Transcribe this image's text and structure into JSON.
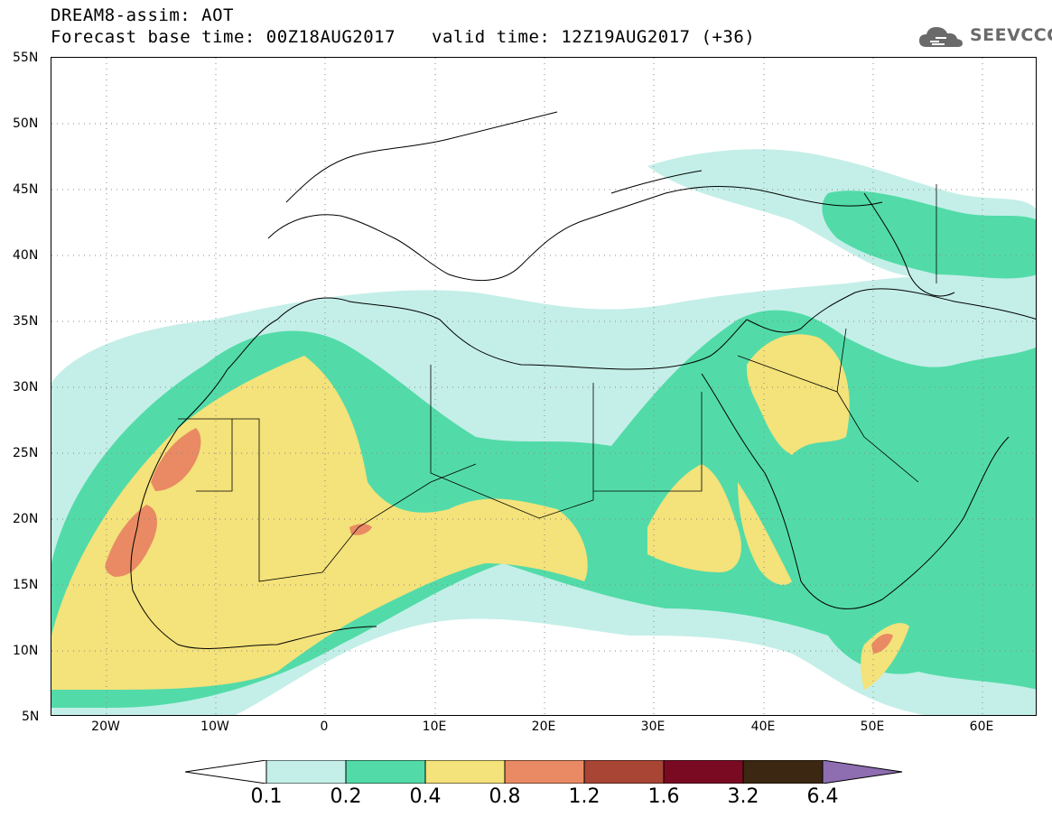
{
  "header": {
    "title_line1": "DREAM8-assim: AOT",
    "base_time": "Forecast base time: 00Z18AUG2017",
    "valid_time": "valid time: 12Z19AUG2017 (+36)",
    "logo_text": "SEEVCCC",
    "logo_icon": "cloud-icon"
  },
  "map": {
    "lat_labels": [
      "55N",
      "50N",
      "45N",
      "40N",
      "35N",
      "30N",
      "25N",
      "20N",
      "15N",
      "10N",
      "5N"
    ],
    "lon_labels": [
      "20W",
      "10W",
      "0",
      "10E",
      "20E",
      "30E",
      "40E",
      "50E",
      "60E"
    ],
    "extent": {
      "lon_min": -25,
      "lon_max": 65,
      "lat_min": 5,
      "lat_max": 55
    }
  },
  "colorbar": {
    "labels": [
      "0.1",
      "0.2",
      "0.4",
      "0.8",
      "1.2",
      "1.6",
      "3.2",
      "6.4"
    ],
    "colors": [
      "#ffffff",
      "#c4efe8",
      "#52dba8",
      "#f4e27a",
      "#e98a64",
      "#a94535",
      "#7a0a22",
      "#3b2712",
      "#8e6db0"
    ]
  }
}
